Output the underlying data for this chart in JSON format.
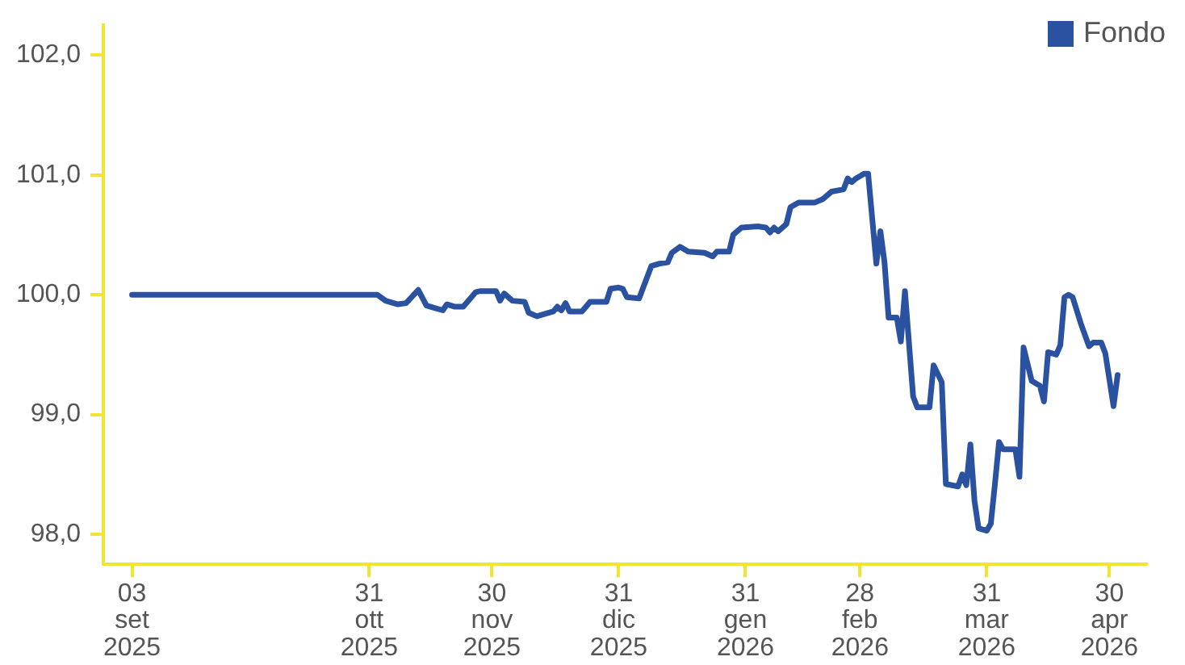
{
  "chart_data": {
    "type": "line",
    "legend": "top right",
    "grid": false,
    "marker": "none",
    "line_style": "solid",
    "xlim": [
      "2025-08-27",
      "2026-05-09"
    ],
    "xticks": [
      {
        "value": "2025-09-03",
        "label": "03 set 2025"
      },
      {
        "value": "2025-10-31",
        "label": "31 ott 2025"
      },
      {
        "value": "2025-11-30",
        "label": "30 nov 2025"
      },
      {
        "value": "2025-12-31",
        "label": "31 dic 2025"
      },
      {
        "value": "2026-01-31",
        "label": "31 gen 2026"
      },
      {
        "value": "2026-02-28",
        "label": "28 feb 2026"
      },
      {
        "value": "2026-03-31",
        "label": "31 mar 2026"
      },
      {
        "value": "2026-04-30",
        "label": "30 apr 2026"
      }
    ],
    "ylim": [
      97.75,
      102.25
    ],
    "yticks": [
      {
        "value": 98,
        "label": "98,0"
      },
      {
        "value": 99,
        "label": "99,0"
      },
      {
        "value": 100,
        "label": "100,0"
      },
      {
        "value": 101,
        "label": "101,0"
      },
      {
        "value": 102,
        "label": "102,0"
      }
    ],
    "x": [
      "2025-09-03",
      "2025-11-02",
      "2025-11-04",
      "2025-11-07",
      "2025-11-09",
      "2025-11-12",
      "2025-11-14",
      "2025-11-16",
      "2025-11-18",
      "2025-11-19",
      "2025-11-21",
      "2025-11-23",
      "2025-11-26",
      "2025-11-27",
      "2025-12-01",
      "2025-12-02",
      "2025-12-03",
      "2025-12-05",
      "2025-12-08",
      "2025-12-09",
      "2025-12-11",
      "2025-12-15",
      "2025-12-16",
      "2025-12-17",
      "2025-12-18",
      "2025-12-19",
      "2025-12-22",
      "2025-12-24",
      "2025-12-28",
      "2025-12-29",
      "2025-12-31",
      "2026-01-01",
      "2026-01-02",
      "2026-01-05",
      "2026-01-06",
      "2026-01-08",
      "2026-01-10",
      "2026-01-12",
      "2026-01-13",
      "2026-01-15",
      "2026-01-17",
      "2026-01-21",
      "2026-01-23",
      "2026-01-24",
      "2026-01-27",
      "2026-01-28",
      "2026-01-30",
      "2026-02-03",
      "2026-02-05",
      "2026-02-06",
      "2026-02-07",
      "2026-02-08",
      "2026-02-10",
      "2026-02-11",
      "2026-02-13",
      "2026-02-17",
      "2026-02-19",
      "2026-02-21",
      "2026-02-24",
      "2026-02-25",
      "2026-02-26",
      "2026-02-27",
      "2026-03-01",
      "2026-03-02",
      "2026-03-04",
      "2026-03-05",
      "2026-03-06",
      "2026-03-07",
      "2026-03-09",
      "2026-03-10",
      "2026-03-11",
      "2026-03-13",
      "2026-03-14",
      "2026-03-17",
      "2026-03-18",
      "2026-03-20",
      "2026-03-21",
      "2026-03-24",
      "2026-03-25",
      "2026-03-26",
      "2026-03-27",
      "2026-03-28",
      "2026-03-29",
      "2026-03-31",
      "2026-04-01",
      "2026-04-02",
      "2026-04-03",
      "2026-04-04",
      "2026-04-07",
      "2026-04-08",
      "2026-04-09",
      "2026-04-11",
      "2026-04-13",
      "2026-04-14",
      "2026-04-15",
      "2026-04-17",
      "2026-04-18",
      "2026-04-19",
      "2026-04-20",
      "2026-04-21",
      "2026-04-23",
      "2026-04-25",
      "2026-04-26",
      "2026-04-28",
      "2026-04-29",
      "2026-05-01",
      "2026-05-02"
    ],
    "series": [
      {
        "name": "Fondo",
        "color": "#2a52a0",
        "values": [
          100.0,
          100.0,
          99.95,
          99.92,
          99.93,
          100.04,
          99.91,
          99.89,
          99.87,
          99.92,
          99.9,
          99.9,
          100.02,
          100.03,
          100.03,
          99.95,
          100.01,
          99.95,
          99.94,
          99.85,
          99.82,
          99.86,
          99.9,
          99.87,
          99.93,
          99.86,
          99.86,
          99.94,
          99.94,
          100.05,
          100.06,
          100.05,
          99.98,
          99.97,
          100.06,
          100.24,
          100.26,
          100.27,
          100.35,
          100.4,
          100.36,
          100.35,
          100.32,
          100.36,
          100.36,
          100.5,
          100.56,
          100.57,
          100.56,
          100.52,
          100.56,
          100.53,
          100.59,
          100.73,
          100.77,
          100.77,
          100.8,
          100.86,
          100.88,
          100.97,
          100.94,
          100.97,
          101.01,
          101.01,
          100.26,
          100.53,
          100.27,
          99.81,
          99.81,
          99.61,
          100.03,
          99.15,
          99.06,
          99.06,
          99.41,
          99.27,
          98.42,
          98.4,
          98.5,
          98.41,
          98.75,
          98.28,
          98.05,
          98.03,
          98.09,
          98.42,
          98.77,
          98.71,
          98.71,
          98.48,
          99.56,
          99.28,
          99.24,
          99.11,
          99.52,
          99.5,
          99.58,
          99.98,
          100.0,
          99.98,
          99.76,
          99.57,
          99.6,
          99.6,
          99.51,
          99.07,
          99.33
        ]
      }
    ]
  }
}
